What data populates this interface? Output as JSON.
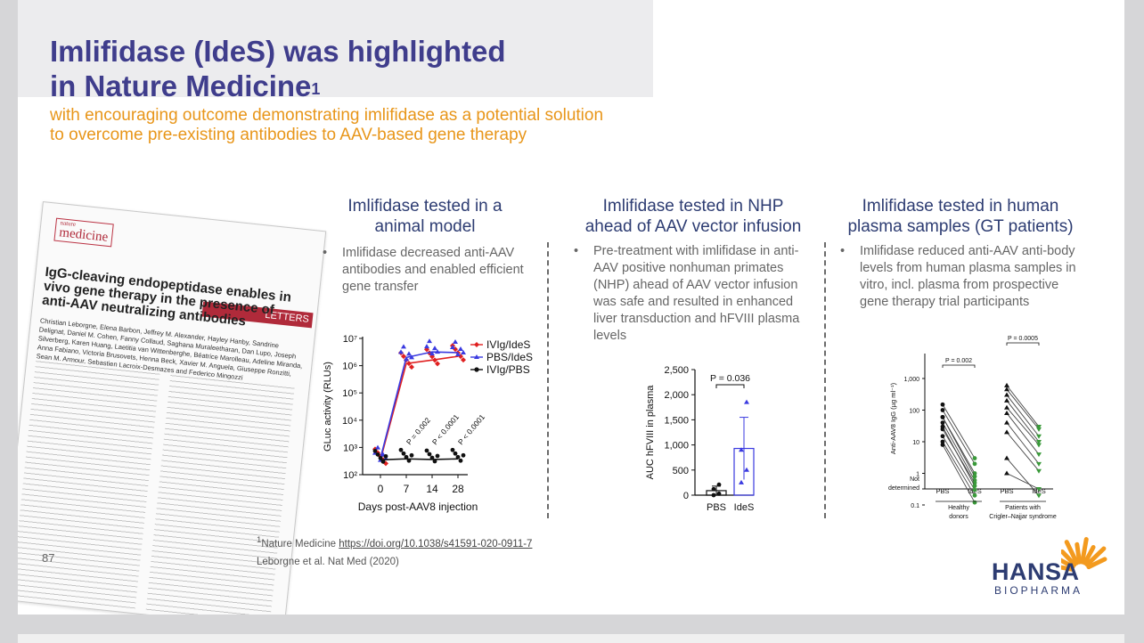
{
  "slide": {
    "title_line1": "Imlifidase (IdeS) was highlighted",
    "title_line2": "in Nature Medicine",
    "title_sup": "1",
    "subtitle_line1": "with encouraging outcome demonstrating imlifidase as a potential solution",
    "subtitle_line2": "to overcome pre-existing antibodies to AAV-based gene therapy",
    "page_number": "87"
  },
  "paper": {
    "journal": "medicine",
    "journal_prefix": "nature",
    "section": "LETTERS",
    "headline": "IgG-cleaving endopeptidase enables in vivo gene therapy in the presence of anti-AAV neutralizing antibodies",
    "authors": "Christian Leborgne, Elena Barbon, Jeffrey M. Alexander, Hayley Hanby, Sandrine Delignat, Daniel M. Cohen, Fanny Collaud, Saghana Muraleetharan, Dan Lupo, Joseph Silverberg, Karen Huang, Laetitia van Wittenberghe, Béatrice Marolleau, Adeline Miranda, Anna Fabiano, Victoria Brusovets, Henna Beck, Xavier M. Anguela, Giuseppe Ronzitti, Sean M. Armour, Sebastien Lacroix-Desmazes and Federico Mingozzi"
  },
  "panels": [
    {
      "title_line1": "Imlifidase tested in a",
      "title_line2": "animal model",
      "bullet": "Imlifidase decreased anti-AAV antibodies and enabled efficient gene transfer"
    },
    {
      "title_line1": "Imlifidase tested in NHP",
      "title_line2": "ahead of AAV vector infusion",
      "bullet": "Pre-treatment with imlifidase in anti-AAV positive nonhuman primates (NHP) ahead of AAV vector infusion was safe and resulted in enhanced liver transduction and hFVIII plasma levels"
    },
    {
      "title_line1": "Imlifidase tested in human",
      "title_line2": "plasma samples (GT patients)",
      "bullet": "Imlifidase reduced anti-AAV anti-body levels from human plasma samples in vitro, incl. plasma from prospective gene therapy trial participants"
    }
  ],
  "bullet_char": "•",
  "footnote": {
    "marker": "1",
    "prefix": "Nature Medicine ",
    "link": "https://doi.org/10.1038/s41591-020-0911-7",
    "line2": "Leborgne et al. Nat Med (2020)"
  },
  "logo": {
    "name": "HANSA",
    "sub": "BIOPHARMA",
    "color": "#2d3c72",
    "accent": "#f39a1e"
  },
  "chart_data": [
    {
      "type": "line",
      "xlabel": "Days post-AAV8 injection",
      "ylabel": "GLuc activity (RLUs)",
      "x_ticks": [
        "0",
        "7",
        "14",
        "28"
      ],
      "y_ticks": [
        "10^2",
        "10^3",
        "10^4",
        "10^5",
        "10^6",
        "10^7"
      ],
      "y_scale": "log",
      "ylim": [
        100,
        10000000
      ],
      "legend_position": "top-right",
      "series": [
        {
          "name": "IVIg/IdeS",
          "color": "#e02020",
          "values": [
            350,
            1200000,
            1600000,
            2200000
          ]
        },
        {
          "name": "PBS/IdeS",
          "color": "#3a3ae0",
          "values": [
            400,
            2000000,
            3200000,
            3000000
          ]
        },
        {
          "name": "IVIg/PBS",
          "color": "#111111",
          "values": [
            350,
            380,
            360,
            380
          ]
        }
      ],
      "annotations": [
        "P = 0.002",
        "P < 0.0001",
        "P < 0.0001"
      ]
    },
    {
      "type": "bar",
      "ylabel": "AUC hFVIII in plasma",
      "categories": [
        "PBS",
        "IdeS"
      ],
      "values": [
        90,
        930
      ],
      "error": [
        90,
        620
      ],
      "points": [
        [
          0,
          30,
          120,
          210
        ],
        [
          250,
          500,
          900,
          1850
        ]
      ],
      "y_ticks": [
        "0",
        "500",
        "1,000",
        "1,500",
        "2,000",
        "2,500"
      ],
      "ylim": [
        0,
        2500
      ],
      "annotation": "P = 0.036",
      "colors": [
        "#111111",
        "#3a3ae0"
      ]
    },
    {
      "type": "line",
      "ylabel": "Anti-AAV8 IgG (µg ml⁻¹)",
      "y_scale": "log",
      "y_ticks": [
        "Not determined",
        "0.1",
        "1",
        "10",
        "100",
        "1,000"
      ],
      "ylim": [
        0.1,
        1000
      ],
      "categories": [
        "PBS",
        "IdeS",
        "PBS",
        "IdeS"
      ],
      "groups": [
        "Healthy donors",
        "Patients with Crigler–Najjar syndrome"
      ],
      "annotations": [
        "P = 0.002",
        "P = 0.0005"
      ],
      "series": [
        {
          "group": "Healthy donors",
          "color": "#3a9a3a",
          "pairs": [
            [
              150,
              3
            ],
            [
              100,
              2
            ],
            [
              60,
              1
            ],
            [
              40,
              0.6
            ],
            [
              25,
              0.5
            ],
            [
              15,
              0.3
            ],
            [
              10,
              0.2
            ],
            [
              8,
              0.12
            ],
            [
              60,
              0.8
            ],
            [
              30,
              0.4
            ]
          ]
        },
        {
          "group": "Patients with Crigler–Najjar syndrome",
          "color": "#3a9a3a",
          "pairs": [
            [
              600,
              30
            ],
            [
              450,
              25
            ],
            [
              300,
              15
            ],
            [
              200,
              10
            ],
            [
              120,
              8
            ],
            [
              80,
              4
            ],
            [
              40,
              2
            ],
            [
              20,
              1.2
            ],
            [
              3,
              0.2
            ],
            [
              1,
              "nd"
            ]
          ]
        }
      ]
    }
  ]
}
